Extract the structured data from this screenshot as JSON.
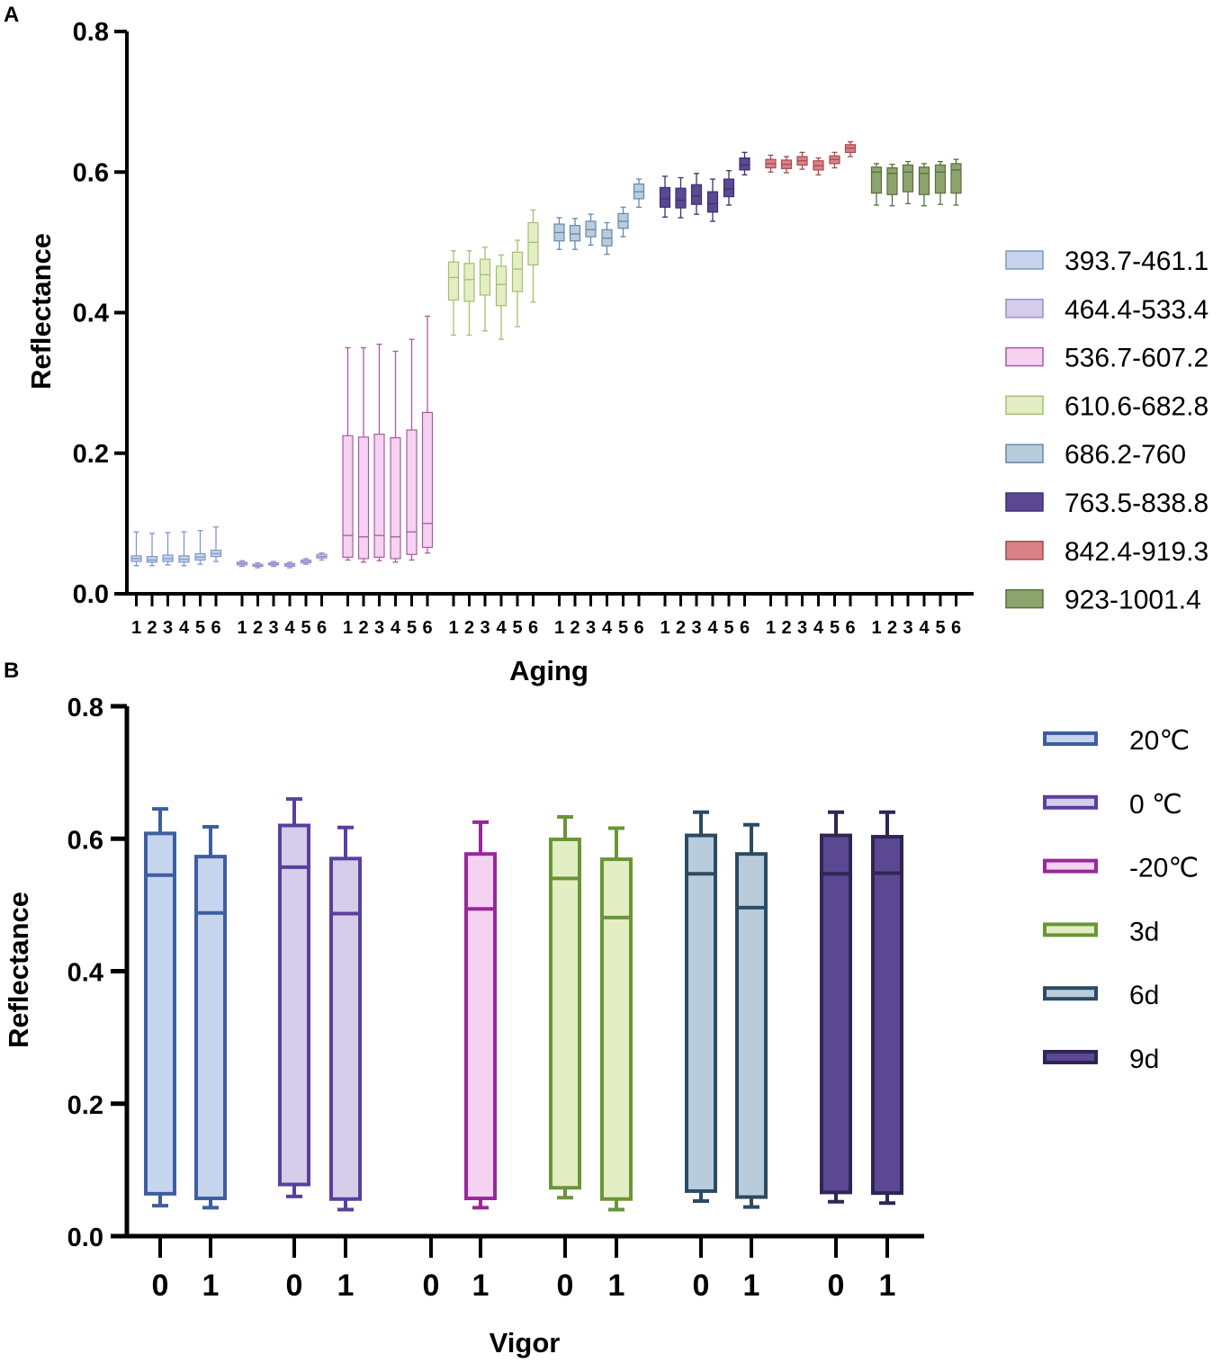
{
  "chart_data": [
    {
      "panel": "A",
      "type": "box",
      "xlabel": "Aging",
      "ylabel": "Reflectance",
      "ylim": [
        0,
        0.8
      ],
      "yticks": [
        "0.0",
        "0.2",
        "0.4",
        "0.6",
        "0.8"
      ],
      "x_tick_labels": [
        "1",
        "2",
        "3",
        "4",
        "5",
        "6"
      ],
      "series": [
        {
          "name": "393.7-461.1",
          "color": "#c6d4ee",
          "stroke": "#7f97c9",
          "boxes": [
            [
              0.04,
              0.046,
              0.05,
              0.054,
              0.088
            ],
            [
              0.04,
              0.045,
              0.048,
              0.053,
              0.086
            ],
            [
              0.041,
              0.046,
              0.05,
              0.055,
              0.087
            ],
            [
              0.04,
              0.045,
              0.049,
              0.054,
              0.088
            ],
            [
              0.042,
              0.048,
              0.052,
              0.057,
              0.09
            ],
            [
              0.046,
              0.053,
              0.057,
              0.062,
              0.095
            ]
          ]
        },
        {
          "name": "464.4-533.4",
          "color": "#d6cdea",
          "stroke": "#9c8ccc",
          "boxes": [
            [
              0.039,
              0.041,
              0.043,
              0.045,
              0.047
            ],
            [
              0.037,
              0.039,
              0.04,
              0.042,
              0.044
            ],
            [
              0.039,
              0.041,
              0.042,
              0.044,
              0.046
            ],
            [
              0.037,
              0.039,
              0.041,
              0.043,
              0.045
            ],
            [
              0.042,
              0.044,
              0.046,
              0.048,
              0.05
            ],
            [
              0.048,
              0.051,
              0.053,
              0.056,
              0.058
            ]
          ]
        },
        {
          "name": "536.7-607.2",
          "color": "#f4d2f0",
          "stroke": "#a85aa8",
          "boxes": [
            [
              0.048,
              0.052,
              0.083,
              0.225,
              0.35
            ],
            [
              0.045,
              0.05,
              0.081,
              0.223,
              0.35
            ],
            [
              0.047,
              0.052,
              0.083,
              0.227,
              0.355
            ],
            [
              0.045,
              0.05,
              0.081,
              0.222,
              0.345
            ],
            [
              0.048,
              0.056,
              0.088,
              0.233,
              0.362
            ],
            [
              0.058,
              0.066,
              0.1,
              0.258,
              0.395
            ]
          ]
        },
        {
          "name": "610.6-682.8",
          "color": "#e3eec4",
          "stroke": "#a3c06f",
          "boxes": [
            [
              0.368,
              0.418,
              0.45,
              0.472,
              0.488
            ],
            [
              0.368,
              0.416,
              0.447,
              0.47,
              0.488
            ],
            [
              0.374,
              0.425,
              0.454,
              0.476,
              0.493
            ],
            [
              0.362,
              0.41,
              0.44,
              0.466,
              0.482
            ],
            [
              0.38,
              0.43,
              0.462,
              0.486,
              0.503
            ],
            [
              0.415,
              0.468,
              0.5,
              0.528,
              0.546
            ]
          ]
        },
        {
          "name": "686.2-760",
          "color": "#b8ccdc",
          "stroke": "#6688a8",
          "boxes": [
            [
              0.49,
              0.502,
              0.514,
              0.526,
              0.535
            ],
            [
              0.49,
              0.502,
              0.512,
              0.524,
              0.534
            ],
            [
              0.496,
              0.508,
              0.518,
              0.53,
              0.54
            ],
            [
              0.483,
              0.495,
              0.506,
              0.518,
              0.528
            ],
            [
              0.508,
              0.52,
              0.53,
              0.541,
              0.55
            ],
            [
              0.55,
              0.562,
              0.572,
              0.583,
              0.59
            ]
          ]
        },
        {
          "name": "763.5-838.8",
          "color": "#5b4893",
          "stroke": "#3e2f70",
          "boxes": [
            [
              0.536,
              0.55,
              0.562,
              0.578,
              0.594
            ],
            [
              0.535,
              0.549,
              0.56,
              0.577,
              0.592
            ],
            [
              0.54,
              0.554,
              0.566,
              0.582,
              0.598
            ],
            [
              0.53,
              0.543,
              0.555,
              0.572,
              0.59
            ],
            [
              0.553,
              0.565,
              0.576,
              0.59,
              0.602
            ],
            [
              0.596,
              0.603,
              0.61,
              0.62,
              0.628
            ]
          ]
        },
        {
          "name": "842.4-919.3",
          "color": "#d98286",
          "stroke": "#a8484e",
          "boxes": [
            [
              0.6,
              0.606,
              0.612,
              0.618,
              0.624
            ],
            [
              0.599,
              0.605,
              0.611,
              0.617,
              0.622
            ],
            [
              0.604,
              0.61,
              0.616,
              0.622,
              0.628
            ],
            [
              0.596,
              0.603,
              0.609,
              0.616,
              0.62
            ],
            [
              0.606,
              0.612,
              0.618,
              0.623,
              0.628
            ],
            [
              0.622,
              0.628,
              0.634,
              0.639,
              0.643
            ]
          ]
        },
        {
          "name": "923-1001.4",
          "color": "#8ea46e",
          "stroke": "#586e3e",
          "boxes": [
            [
              0.553,
              0.57,
              0.6,
              0.607,
              0.612
            ],
            [
              0.552,
              0.568,
              0.598,
              0.606,
              0.611
            ],
            [
              0.555,
              0.572,
              0.6,
              0.61,
              0.615
            ],
            [
              0.552,
              0.568,
              0.598,
              0.607,
              0.612
            ],
            [
              0.554,
              0.57,
              0.6,
              0.61,
              0.615
            ],
            [
              0.553,
              0.57,
              0.603,
              0.612,
              0.618
            ]
          ]
        }
      ]
    },
    {
      "panel": "B",
      "type": "box",
      "xlabel": "Vigor",
      "ylabel": "Reflectance",
      "ylim": [
        0,
        0.8
      ],
      "yticks": [
        "0.0",
        "0.2",
        "0.4",
        "0.6",
        "0.8"
      ],
      "x_tick_labels": [
        "0",
        "1"
      ],
      "series": [
        {
          "name": "20℃",
          "color": "#c6d4ee",
          "stroke": "#3e5ea0",
          "boxes": [
            [
              0.046,
              0.064,
              0.545,
              0.608,
              0.645
            ],
            [
              0.043,
              0.057,
              0.488,
              0.573,
              0.618
            ]
          ]
        },
        {
          "name": "0 ℃",
          "color": "#d6cdea",
          "stroke": "#5a3f9e",
          "boxes": [
            [
              0.06,
              0.078,
              0.557,
              0.62,
              0.66
            ],
            [
              0.04,
              0.056,
              0.487,
              0.57,
              0.617
            ]
          ]
        },
        {
          "name": "-20℃",
          "color": "#f4d2f0",
          "stroke": "#98289a",
          "boxes": [
            null,
            [
              0.043,
              0.057,
              0.494,
              0.577,
              0.625
            ]
          ]
        },
        {
          "name": "3d",
          "color": "#e3eec4",
          "stroke": "#6a9636",
          "boxes": [
            [
              0.058,
              0.073,
              0.54,
              0.599,
              0.633
            ],
            [
              0.04,
              0.056,
              0.481,
              0.569,
              0.616
            ]
          ]
        },
        {
          "name": "6d",
          "color": "#b8ccdc",
          "stroke": "#2c4a62",
          "boxes": [
            [
              0.053,
              0.068,
              0.547,
              0.605,
              0.64
            ],
            [
              0.044,
              0.059,
              0.496,
              0.577,
              0.621
            ]
          ]
        },
        {
          "name": "9d",
          "color": "#5b4893",
          "stroke": "#302554",
          "boxes": [
            [
              0.052,
              0.066,
              0.547,
              0.605,
              0.64
            ],
            [
              0.05,
              0.065,
              0.548,
              0.603,
              0.64
            ]
          ]
        }
      ]
    }
  ]
}
